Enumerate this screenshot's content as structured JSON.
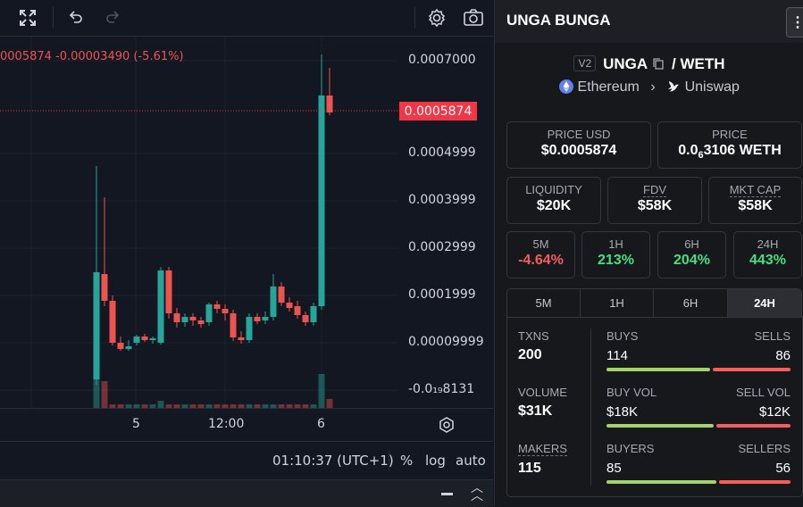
{
  "chart": {
    "info_line": "0005874  -0.00003490 (-5.61%)",
    "price_labels": [
      "0.0007000",
      "0.0004999",
      "0.0003999",
      "0.0002999",
      "0.0001999",
      "0.00009999",
      "-0.0₁₉8131"
    ],
    "current_price_tag": "0.0005874",
    "time_labels": [
      "5",
      "12:00",
      "6"
    ],
    "clock": "01:10:37 (UTC+1)",
    "percent_label": "%",
    "log_label": "log",
    "auto_label": "auto",
    "colors": {
      "up": "#26a69a",
      "down": "#ef5350",
      "price_tag": "#f23645"
    }
  },
  "token": {
    "name": "UNGA BUNGA",
    "version_badge": "V2",
    "base": "UNGA",
    "slash": "/",
    "quote": "WETH",
    "chain": "Ethereum",
    "chevron": "›",
    "dex": "Uniswap"
  },
  "prices": {
    "usd_label": "PRICE USD",
    "usd_value": "$0.0005874",
    "native_label": "PRICE",
    "native_prefix": "0.0",
    "native_subscript": "6",
    "native_rest": "3106 WETH"
  },
  "metrics": [
    {
      "label": "LIQUIDITY",
      "value": "$20K"
    },
    {
      "label": "FDV",
      "value": "$58K"
    },
    {
      "label": "MKT CAP",
      "value": "$58K"
    }
  ],
  "changes": [
    {
      "label": "5M",
      "value": "-4.64%"
    },
    {
      "label": "1H",
      "value": "213%"
    },
    {
      "label": "6H",
      "value": "204%"
    },
    {
      "label": "24H",
      "value": "443%"
    }
  ],
  "tabs": [
    "5M",
    "1H",
    "6H",
    "24H"
  ],
  "stats": {
    "txns_label": "TXNS",
    "txns_value": "200",
    "buys_label": "BUYS",
    "buys_value": "114",
    "sells_label": "SELLS",
    "sells_value": "86",
    "volume_label": "VOLUME",
    "volume_value": "$31K",
    "buy_vol_label": "BUY VOL",
    "buy_vol_value": "$18K",
    "sell_vol_label": "SELL VOL",
    "sell_vol_value": "$12K",
    "makers_label": "MAKERS",
    "makers_value": "115",
    "buyers_label": "BUYERS",
    "buyers_value": "85",
    "sellers_label": "SELLERS",
    "sellers_value": "56"
  }
}
